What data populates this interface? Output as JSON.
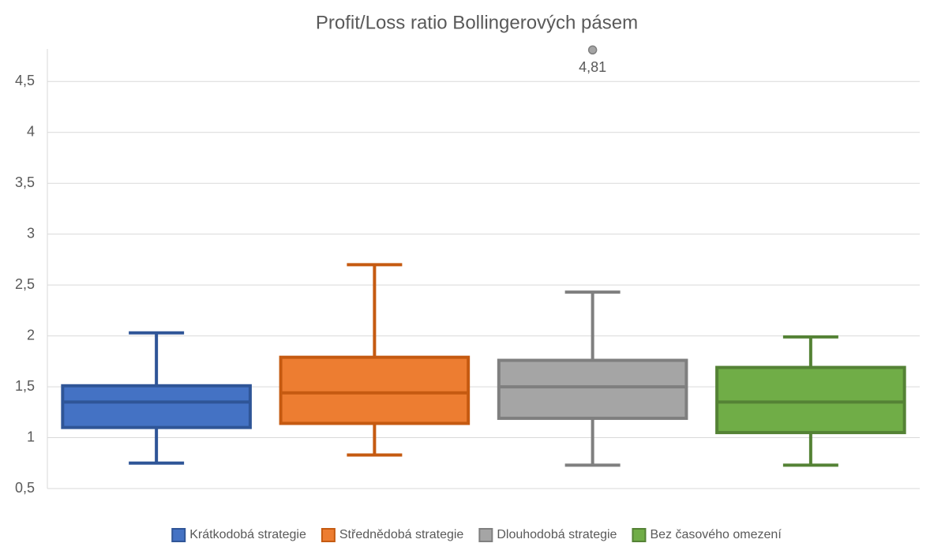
{
  "chart_data": {
    "type": "box",
    "title": "Profit/Loss ratio Bollingerových pásem",
    "ylim": [
      0.5,
      4.82
    ],
    "yticks": [
      {
        "value": 0.5,
        "label": "0,5"
      },
      1,
      {
        "value": 1.5,
        "label": "1,5"
      },
      2,
      {
        "value": 2.5,
        "label": "2,5"
      },
      3,
      {
        "value": 3.5,
        "label": "3,5"
      },
      4,
      {
        "value": 4.5,
        "label": "4,5"
      }
    ],
    "grid": true,
    "legend": "bottom",
    "series": [
      {
        "name": "Krátkodobá strategie",
        "color": "#4472c4",
        "edge_color": "#2f5597",
        "min": 0.75,
        "q1": 1.1,
        "median": 1.35,
        "q3": 1.51,
        "max": 2.03,
        "outliers": []
      },
      {
        "name": "Střednědobá strategie",
        "color": "#ed7d31",
        "edge_color": "#c55a11",
        "min": 0.83,
        "q1": 1.14,
        "median": 1.44,
        "q3": 1.79,
        "max": 2.7,
        "outliers": []
      },
      {
        "name": "Dlouhodobá strategie",
        "color": "#a5a5a5",
        "edge_color": "#7f7f7f",
        "min": 0.73,
        "q1": 1.19,
        "median": 1.5,
        "q3": 1.76,
        "max": 2.43,
        "outliers": [
          4.81
        ],
        "outlier_labels": [
          "4,81"
        ]
      },
      {
        "name": "Bez časového omezení",
        "color": "#70ad47",
        "edge_color": "#548235",
        "min": 0.73,
        "q1": 1.05,
        "median": 1.35,
        "q3": 1.69,
        "max": 1.99,
        "outliers": []
      }
    ]
  }
}
